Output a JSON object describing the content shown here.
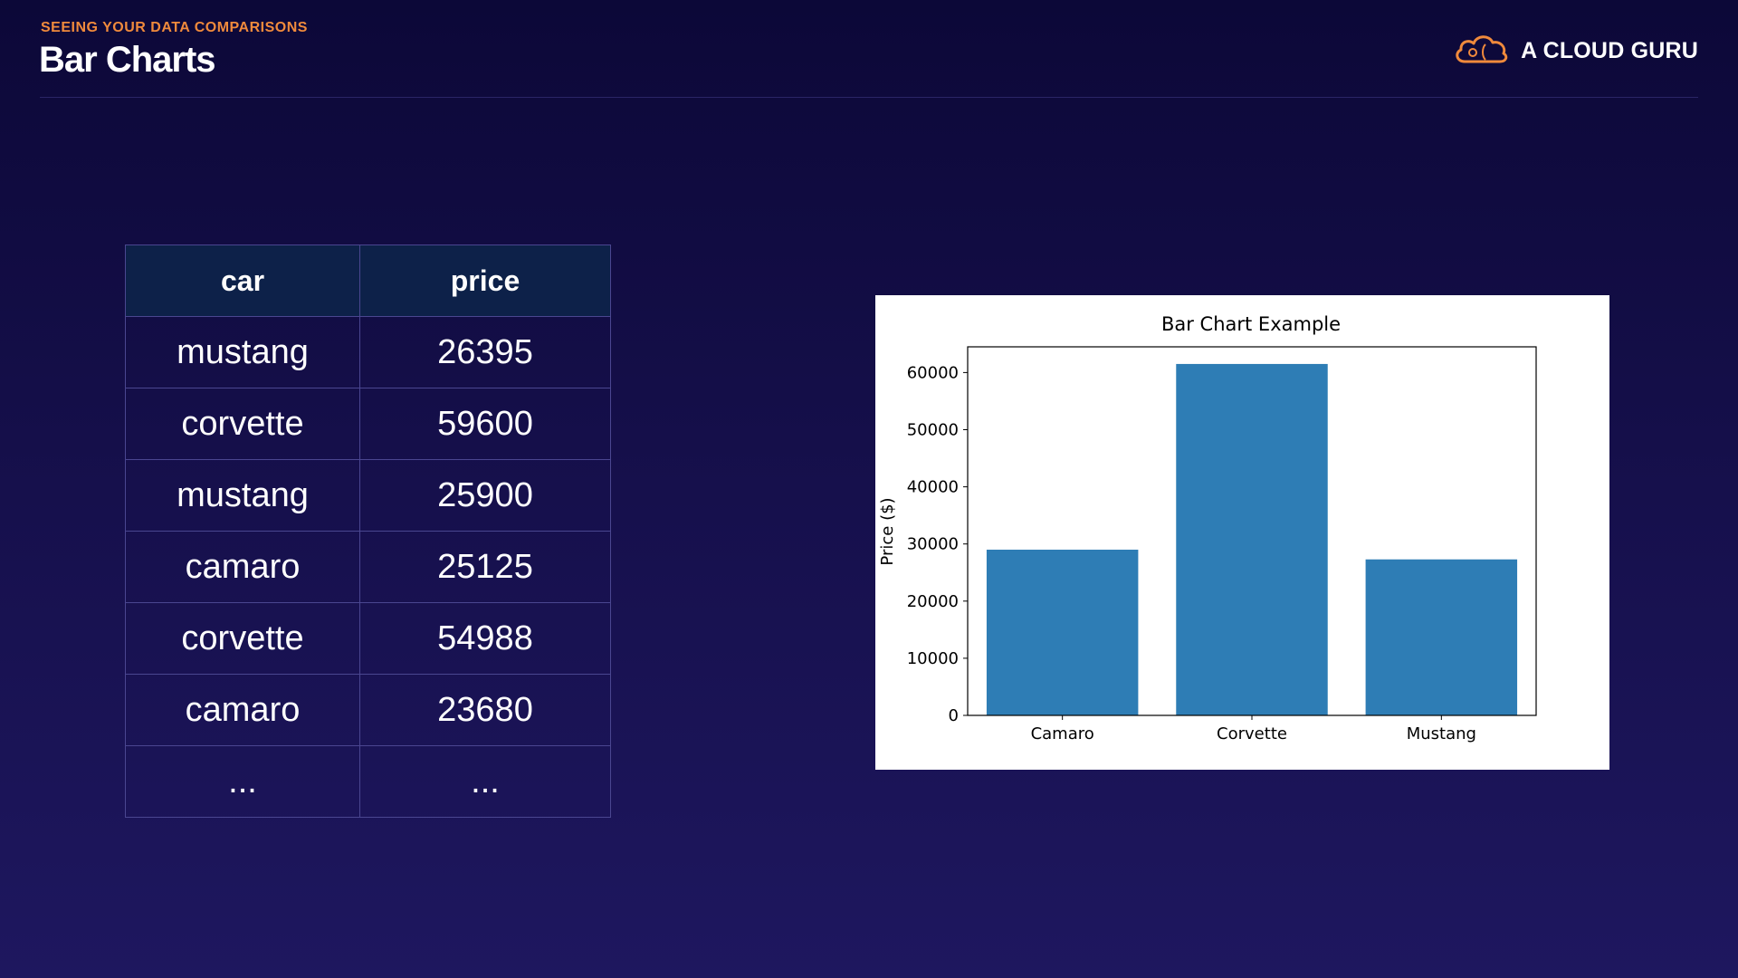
{
  "header": {
    "eyebrow": "SEEING YOUR DATA COMPARISONS",
    "title": "Bar Charts",
    "brand": "A CLOUD GURU",
    "brand_icon": "cloud-logo-icon",
    "brand_color": "#f08a3c"
  },
  "table": {
    "headers": [
      "car",
      "price"
    ],
    "rows": [
      [
        "mustang",
        "26395"
      ],
      [
        "corvette",
        "59600"
      ],
      [
        "mustang",
        "25900"
      ],
      [
        "camaro",
        "25125"
      ],
      [
        "corvette",
        "54988"
      ],
      [
        "camaro",
        "23680"
      ],
      [
        "...",
        "..."
      ]
    ],
    "header_bg": "#0d2149"
  },
  "chart_data": {
    "type": "bar",
    "title": "Bar Chart Example",
    "xlabel": "",
    "ylabel": "Price ($)",
    "categories": [
      "Camaro",
      "Corvette",
      "Mustang"
    ],
    "values": [
      29000,
      61500,
      27300
    ],
    "ylim": [
      0,
      64500
    ],
    "yticks": [
      0,
      10000,
      20000,
      30000,
      40000,
      50000,
      60000
    ],
    "bar_color": "#2e7db5",
    "grid": false,
    "legend": "none"
  }
}
